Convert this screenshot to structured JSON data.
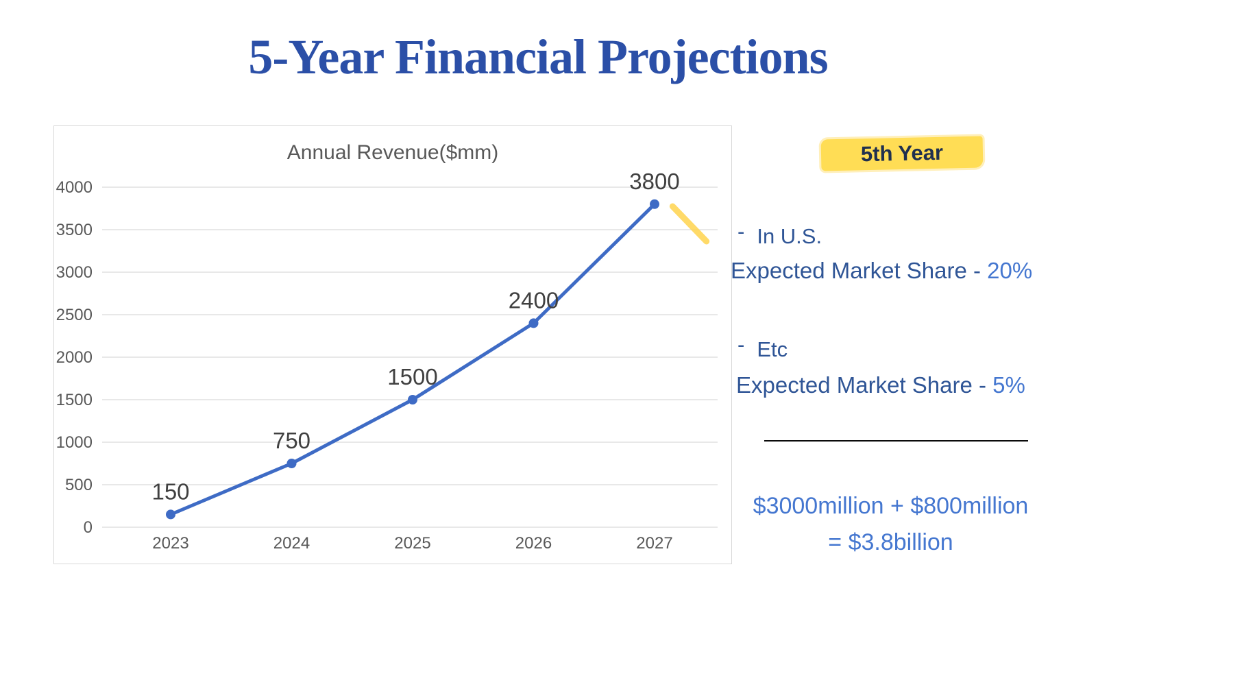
{
  "slide": {
    "title": "5-Year Financial Projections"
  },
  "chart_data": {
    "type": "line",
    "title": "Annual Revenue($mm)",
    "categories": [
      "2023",
      "2024",
      "2025",
      "2026",
      "2027"
    ],
    "values": [
      150,
      750,
      1500,
      2400,
      3800
    ],
    "data_labels": [
      "150",
      "750",
      "1500",
      "2400",
      "3800"
    ],
    "xlabel": "",
    "ylabel": "",
    "ylim": [
      0,
      4000
    ],
    "yticks": [
      0,
      500,
      1000,
      1500,
      2000,
      2500,
      3000,
      3500,
      4000
    ],
    "grid": true,
    "legend": "none",
    "line_color": "#3E6BC5",
    "marker_color": "#3E6BC5"
  },
  "annotation": {
    "heading": "5th Year",
    "items": [
      {
        "bullet": "-",
        "label": "In U.S.",
        "detail": "Expected Market Share - ",
        "value": "20%"
      },
      {
        "bullet": "-",
        "label": "Etc",
        "detail": "Expected Market Share - ",
        "value": "5%"
      }
    ],
    "summary_line1": "$3000million + $800million",
    "summary_line2": "= $3.8billion"
  },
  "colors": {
    "title_blue": "#2B4FA7",
    "text_blue": "#2F5596",
    "value_blue": "#4577D0",
    "highlight_yellow": "#FFDD55",
    "marker_stroke_yellow": "#FFD44D",
    "line_blue": "#3E6BC5",
    "axis_gray": "#595959",
    "grid_gray": "#D9D9D9",
    "data_label_gray": "#404040"
  }
}
